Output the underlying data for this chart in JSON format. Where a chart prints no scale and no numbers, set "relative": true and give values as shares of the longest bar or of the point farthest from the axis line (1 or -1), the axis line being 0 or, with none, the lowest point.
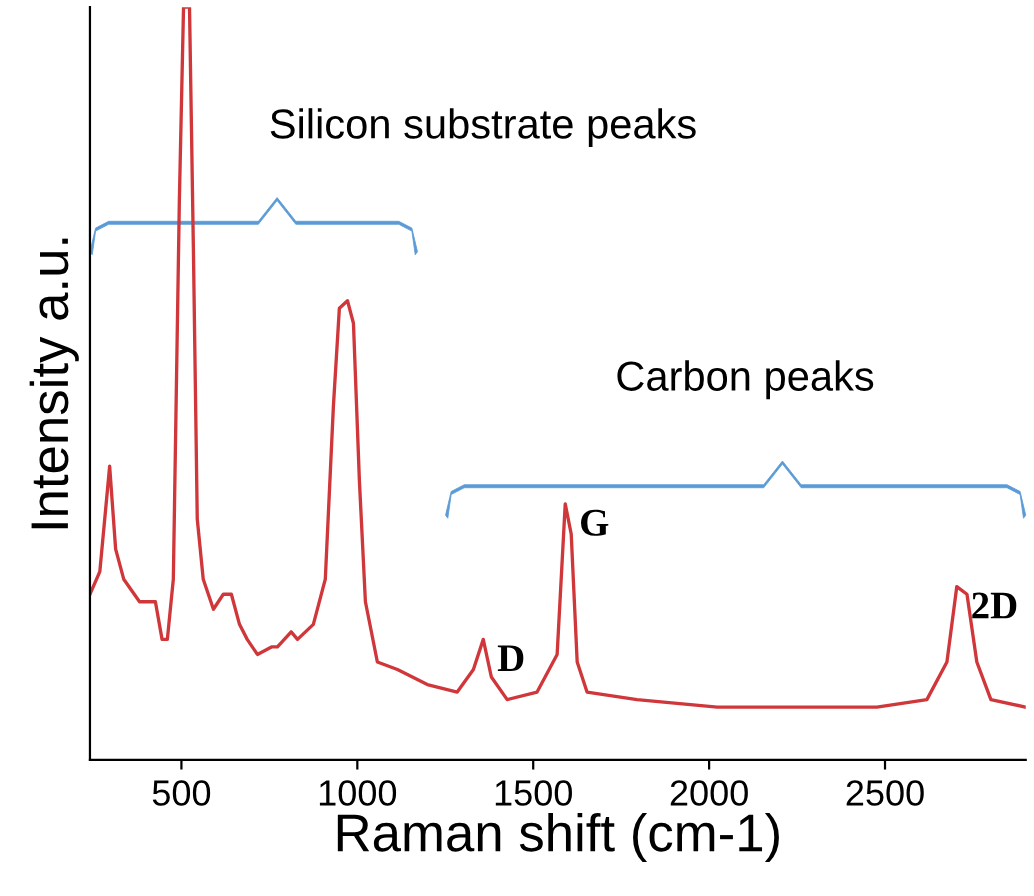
{
  "chart_data": {
    "type": "line",
    "relative": true,
    "xlabel": "Raman shift (cm-1)",
    "ylabel": "Intensity a.u.",
    "xlim": [
      240,
      2900
    ],
    "xticks": [
      500,
      1000,
      1500,
      2000,
      2500
    ],
    "grid": false,
    "tick_labels": "x",
    "series": [
      {
        "color": "#d0373a",
        "x": [
          240,
          268,
          296,
          313,
          336,
          381,
          426,
          445,
          460,
          477,
          494,
          506,
          523,
          534,
          545,
          562,
          591,
          619,
          642,
          665,
          687,
          716,
          756,
          773,
          812,
          830,
          875,
          909,
          932,
          949,
          972,
          989,
          1006,
          1023,
          1057,
          1114,
          1199,
          1284,
          1330,
          1358,
          1381,
          1426,
          1511,
          1568,
          1591,
          1608,
          1625,
          1653,
          1795,
          2023,
          2250,
          2477,
          2619,
          2676,
          2704,
          2733,
          2761,
          2801,
          2900
        ],
        "values": [
          0.22,
          0.25,
          0.39,
          0.28,
          0.24,
          0.21,
          0.21,
          0.16,
          0.16,
          0.24,
          0.74,
          1.0,
          1.0,
          0.68,
          0.32,
          0.24,
          0.2,
          0.22,
          0.22,
          0.18,
          0.16,
          0.14,
          0.15,
          0.15,
          0.17,
          0.16,
          0.18,
          0.24,
          0.47,
          0.6,
          0.61,
          0.58,
          0.37,
          0.21,
          0.13,
          0.12,
          0.1,
          0.09,
          0.12,
          0.16,
          0.11,
          0.08,
          0.09,
          0.14,
          0.34,
          0.3,
          0.13,
          0.09,
          0.08,
          0.07,
          0.07,
          0.07,
          0.08,
          0.13,
          0.23,
          0.22,
          0.13,
          0.08,
          0.07
        ]
      }
    ],
    "annotations": [
      "Silicon substrate peaks",
      "Carbon peaks",
      {
        "text": "D",
        "x": 1358,
        "y": 0.16
      },
      {
        "text": "G",
        "x": 1591,
        "y": 0.34
      },
      {
        "text": "2D",
        "x": 2704,
        "y": 0.23
      }
    ]
  }
}
